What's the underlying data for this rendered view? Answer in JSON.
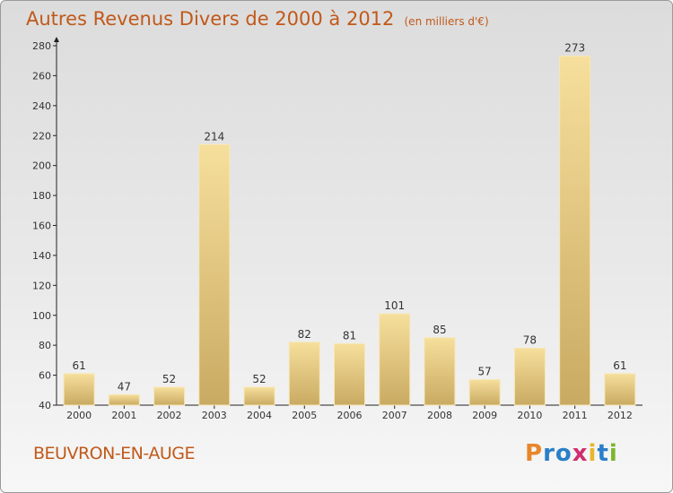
{
  "title": "Autres Revenus Divers de 2000 à 2012",
  "unit": "(en milliers d'€)",
  "commune": "BEUVRON-EN-AUGE",
  "logo": "Proxiti",
  "colors": {
    "title": "#c1591a",
    "bar_light": "#f5dc95",
    "bar_dark": "#c7a860",
    "axis": "#222222",
    "logo": [
      "#e8862a",
      "#2a7fc8",
      "#2a7fc8",
      "#d02e6e",
      "#e8b62a",
      "#2a7fc8",
      "#7ab82a"
    ]
  },
  "chart_data": {
    "type": "bar",
    "title": "Autres Revenus Divers de 2000 à 2012",
    "subtitle": "(en milliers d'€)",
    "xlabel": "",
    "ylabel": "",
    "categories": [
      "2000",
      "2001",
      "2002",
      "2003",
      "2004",
      "2005",
      "2006",
      "2007",
      "2008",
      "2009",
      "2010",
      "2011",
      "2012"
    ],
    "values": [
      61,
      47,
      52,
      214,
      52,
      82,
      81,
      101,
      85,
      57,
      78,
      273,
      61
    ],
    "ylim": [
      40,
      280
    ],
    "yticks": [
      40,
      60,
      80,
      100,
      120,
      140,
      160,
      180,
      200,
      220,
      240,
      260,
      280
    ],
    "grid": false,
    "data_labels": true
  }
}
